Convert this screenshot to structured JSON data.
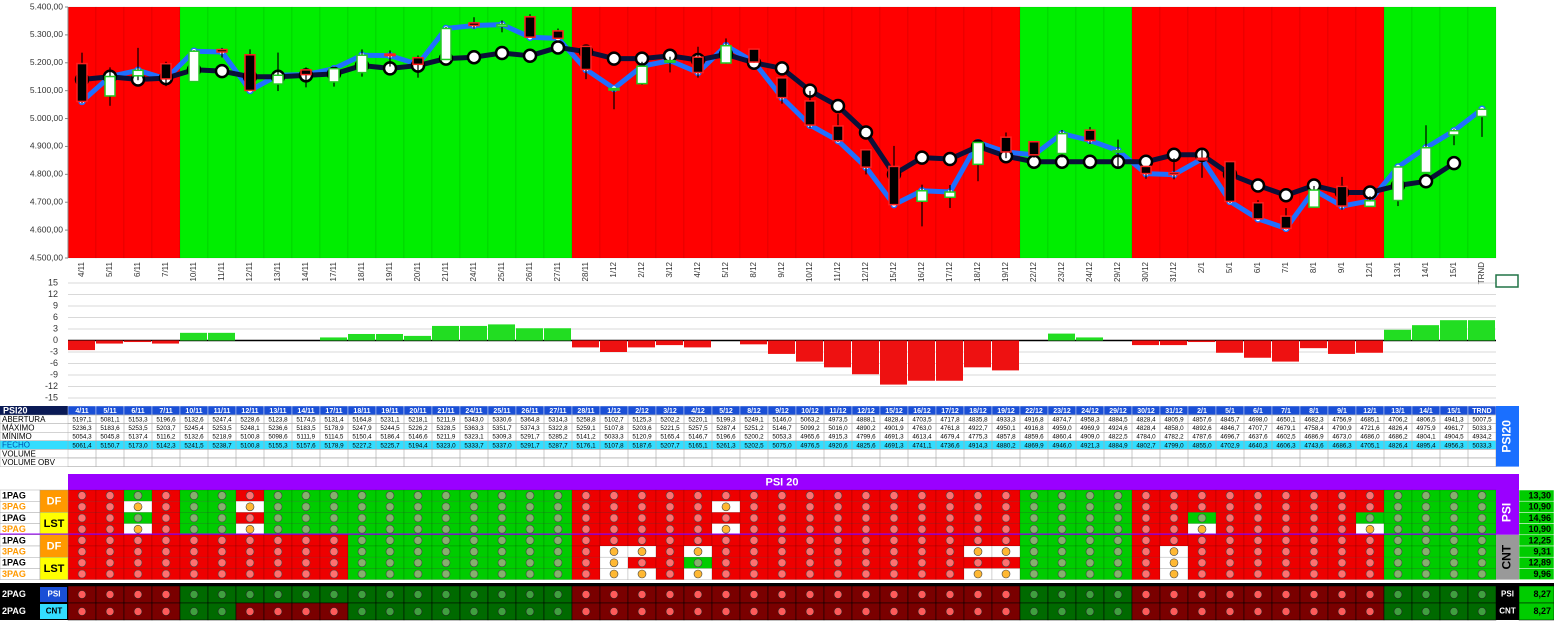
{
  "chart_data": [
    {
      "type": "candlestick",
      "categories": [
        "4/11",
        "5/11",
        "6/11",
        "7/11",
        "10/11",
        "11/11",
        "12/11",
        "13/11",
        "14/11",
        "17/11",
        "18/11",
        "19/11",
        "20/11",
        "21/11",
        "24/11",
        "25/11",
        "26/11",
        "27/11",
        "28/11",
        "1/12",
        "2/12",
        "3/12",
        "4/12",
        "5/12",
        "8/12",
        "9/12",
        "10/12",
        "11/12",
        "12/12",
        "15/12",
        "16/12",
        "17/12",
        "18/12",
        "19/12",
        "22/12",
        "23/12",
        "24/12",
        "29/12",
        "30/12",
        "31/12",
        "2/1",
        "5/1",
        "6/1",
        "7/1",
        "8/1",
        "9/1",
        "12/1",
        "13/1",
        "14/1",
        "15/1",
        "TRND"
      ],
      "open": [
        5197.1,
        5081.1,
        5153.3,
        5196.6,
        5132.6,
        5247.4,
        5228.6,
        5123.8,
        5174.5,
        5131.4,
        5164.8,
        5231.1,
        5218.1,
        5211.9,
        5343.0,
        5330.6,
        5364.8,
        5314.3,
        5258.8,
        5102.7,
        5125.3,
        5202.2,
        5220.1,
        5199.3,
        5249.1,
        5146.0,
        5063.2,
        4973.5,
        4888.1,
        4828.4,
        4703.5,
        4717.8,
        4835.8,
        4933.3,
        4916.8,
        4874.7,
        4958.3,
        4884.5,
        4828.4,
        4805.9,
        4857.6,
        4845.7,
        4698.0,
        4650.1,
        4682.3,
        4756.9,
        4685.1,
        4706.2,
        4806.5,
        4941.3,
        5007.5
      ],
      "high": [
        5236.3,
        5183.6,
        5253.5,
        5203.7,
        5245.4,
        5253.5,
        5248.1,
        5236.6,
        5183.5,
        5178.9,
        5247.9,
        5244.5,
        5226.2,
        5328.5,
        5363.3,
        5351.7,
        5374.3,
        5322.8,
        5259.1,
        5107.8,
        5203.6,
        5221.5,
        5257.5,
        5287.4,
        5251.2,
        5146.7,
        5099.2,
        5016.0,
        4890.2,
        4901.9,
        4763.0,
        4761.8,
        4922.7,
        4950.1,
        4916.8,
        4959.0,
        4969.9,
        4924.6,
        4828.4,
        4858.0,
        4892.6,
        4846.7,
        4707.7,
        4679.1,
        4758.4,
        4790.9,
        4721.6,
        4826.4,
        4975.9,
        4961.7,
        5033.3
      ],
      "low": [
        5054.3,
        5045.8,
        5137.4,
        5116.2,
        5132.6,
        5218.9,
        5100.8,
        5098.6,
        5111.9,
        5114.5,
        5150.4,
        5186.4,
        5146.6,
        5211.9,
        5323.1,
        5309.3,
        5291.7,
        5285.2,
        5141.2,
        5033.3,
        5120.9,
        5165.4,
        5146.7,
        5196.6,
        5200.2,
        5053.3,
        4965.6,
        4915.3,
        4799.6,
        4691.3,
        4613.4,
        4679.4,
        4775.3,
        4857.8,
        4859.6,
        4860.4,
        4909.0,
        4822.5,
        4784.0,
        4782.2,
        4787.6,
        4696.7,
        4637.6,
        4602.5,
        4686.9,
        4673.0,
        4686.0,
        4686.2,
        4804.1,
        4904.5,
        4934.2
      ],
      "close": [
        5061.4,
        5150.7,
        5173.0,
        5142.3,
        5241.5,
        5238.7,
        5100.8,
        5155.3,
        5157.6,
        5178.9,
        5227.2,
        5225.7,
        5194.4,
        5323.0,
        5333.7,
        5337.0,
        5291.7,
        5287.7,
        5176.1,
        5107.8,
        5187.6,
        5207.7,
        5165.1,
        5261.3,
        5202.5,
        5075.0,
        4976.5,
        4920.6,
        4825.6,
        4691.3,
        4741.1,
        4736.6,
        4914.3,
        4880.2,
        4869.9,
        4946.0,
        4921.3,
        4884.9,
        4802.7,
        4799.0,
        4855.0,
        4702.9,
        4640.3,
        4606.3,
        4743.6,
        4686.3,
        4705.1,
        4826.4,
        4895.4,
        4956.3,
        5033.3
      ],
      "trend": {
        "color": "#0b1038",
        "values": [
          5140,
          5150,
          5140,
          5145,
          5175,
          5170,
          5150,
          5150,
          5155,
          5160,
          5190,
          5180,
          5190,
          5215,
          5220,
          5235,
          5225,
          5255,
          5240,
          5215,
          5215,
          5225,
          5210,
          5230,
          5200,
          5180,
          5100,
          5045,
          4950,
          4800,
          4860,
          4855,
          4900,
          4865,
          4845,
          4845,
          4845,
          4845,
          4845,
          4870,
          4870,
          4800,
          4760,
          4725,
          4760,
          4735,
          4735,
          4760,
          4775,
          4840,
          null
        ]
      },
      "close_line_color": "#1f6fff",
      "up_color": "#ffffff",
      "up_border": "#22cc22",
      "down_color": "#000000",
      "down_border": "#ff2020",
      "band_colors": [
        "#ff0000",
        "#ff0000",
        "#ff0000",
        "#ff0000",
        "#00ee00",
        "#00ee00",
        "#00ee00",
        "#00ee00",
        "#00ee00",
        "#00ee00",
        "#00ee00",
        "#00ee00",
        "#00ee00",
        "#00ee00",
        "#00ee00",
        "#00ee00",
        "#00ee00",
        "#00ee00",
        "#ff0000",
        "#ff0000",
        "#ff0000",
        "#ff0000",
        "#ff0000",
        "#ff0000",
        "#ff0000",
        "#ff0000",
        "#ff0000",
        "#ff0000",
        "#ff0000",
        "#ff0000",
        "#ff0000",
        "#ff0000",
        "#ff0000",
        "#ff0000",
        "#00ee00",
        "#00ee00",
        "#00ee00",
        "#00ee00",
        "#ff0000",
        "#ff0000",
        "#ff0000",
        "#ff0000",
        "#ff0000",
        "#ff0000",
        "#ff0000",
        "#ff0000",
        "#ff0000",
        "#00ee00",
        "#00ee00",
        "#00ee00",
        "#00ee00"
      ],
      "ylim": [
        4500,
        5400
      ],
      "yticks": [
        {
          "value": 4500,
          "label": "4.500,00"
        },
        {
          "value": 4600,
          "label": "4.600,00"
        },
        {
          "value": 4700,
          "label": "4.700,00"
        },
        {
          "value": 4800,
          "label": "4.800,00"
        },
        {
          "value": 4900,
          "label": "4.900,00"
        },
        {
          "value": 5000,
          "label": "5.000,00"
        },
        {
          "value": 5100,
          "label": "5.100,00"
        },
        {
          "value": 5200,
          "label": "5.200,00"
        },
        {
          "value": 5300,
          "label": "5.300,00"
        },
        {
          "value": 5400,
          "label": "5.400,00"
        }
      ]
    },
    {
      "type": "bar",
      "values": [
        -2.5,
        -0.8,
        -0.4,
        -0.8,
        2,
        2,
        0,
        0,
        0,
        0.8,
        1.7,
        1.7,
        1.2,
        3.8,
        3.8,
        4.2,
        3.2,
        3.2,
        -1.8,
        -3,
        -1.8,
        -1.2,
        -1.8,
        0,
        -1,
        -3.5,
        -5.5,
        -7,
        -8.8,
        -11.5,
        -10.5,
        -10.5,
        -7,
        -7.8,
        0,
        1.8,
        0.8,
        0,
        -1.2,
        -1.2,
        -0.4,
        -3.2,
        -4.5,
        -5.5,
        -2,
        -3.5,
        -3.2,
        2.8,
        4,
        5.3,
        5.3
      ],
      "positive_color": "#22dd22",
      "negative_color": "#ee1111",
      "ylim": [
        -15,
        15
      ],
      "yticks": [
        -15,
        -12,
        -9,
        -6,
        -3,
        0,
        3,
        6,
        9,
        12,
        15
      ],
      "grid": true
    }
  ],
  "table": {
    "title": "PSI20",
    "side_label": "PSI20",
    "rows": [
      {
        "label": "ABERTURA",
        "cells": [
          "5197,1",
          "5081,1",
          "5153,3",
          "5196,6",
          "5132,6",
          "5247,4",
          "5228,6",
          "5123,8",
          "5174,5",
          "5131,4",
          "5164,8",
          "5231,1",
          "5218,1",
          "5211,9",
          "5343,0",
          "5330,6",
          "5364,8",
          "5314,3",
          "5258,8",
          "5102,7",
          "5125,3",
          "5202,2",
          "5220,1",
          "5199,3",
          "5249,1",
          "5146,0",
          "5063,2",
          "4973,5",
          "4888,1",
          "4828,4",
          "4703,5",
          "4717,8",
          "4835,8",
          "4933,3",
          "4916,8",
          "4874,7",
          "4958,3",
          "4884,5",
          "4828,4",
          "4805,9",
          "4857,6",
          "4845,7",
          "4698,0",
          "4650,1",
          "4682,3",
          "4756,9",
          "4685,1",
          "4706,2",
          "4806,5",
          "4941,3",
          "5007,5"
        ]
      },
      {
        "label": "MÁXIMO",
        "cells": [
          "5236,3",
          "5183,6",
          "5253,5",
          "5203,7",
          "5245,4",
          "5253,5",
          "5248,1",
          "5236,6",
          "5183,5",
          "5178,9",
          "5247,9",
          "5244,5",
          "5226,2",
          "5328,5",
          "5363,3",
          "5351,7",
          "5374,3",
          "5322,8",
          "5259,1",
          "5107,8",
          "5203,6",
          "5221,5",
          "5257,5",
          "5287,4",
          "5251,2",
          "5146,7",
          "5099,2",
          "5016,0",
          "4890,2",
          "4901,9",
          "4763,0",
          "4761,8",
          "4922,7",
          "4950,1",
          "4916,8",
          "4959,0",
          "4969,9",
          "4924,6",
          "4828,4",
          "4858,0",
          "4892,6",
          "4846,7",
          "4707,7",
          "4679,1",
          "4758,4",
          "4790,9",
          "4721,6",
          "4826,4",
          "4975,9",
          "4961,7",
          "5033,3"
        ]
      },
      {
        "label": "MÍNIMO",
        "cells": [
          "5054,3",
          "5045,8",
          "5137,4",
          "5116,2",
          "5132,6",
          "5218,9",
          "5100,8",
          "5098,6",
          "5111,9",
          "5114,5",
          "5150,4",
          "5186,4",
          "5146,6",
          "5211,9",
          "5323,1",
          "5309,3",
          "5291,7",
          "5285,2",
          "5141,2",
          "5033,3",
          "5120,9",
          "5165,4",
          "5146,7",
          "5196,6",
          "5200,2",
          "5053,3",
          "4965,6",
          "4915,3",
          "4799,6",
          "4691,3",
          "4613,4",
          "4679,4",
          "4775,3",
          "4857,8",
          "4859,6",
          "4860,4",
          "4909,0",
          "4822,5",
          "4784,0",
          "4782,2",
          "4787,6",
          "4696,7",
          "4637,6",
          "4602,5",
          "4686,9",
          "4673,0",
          "4686,0",
          "4686,2",
          "4804,1",
          "4904,5",
          "4934,2"
        ]
      },
      {
        "label": "FECHO",
        "cells": [
          "5061,4",
          "5150,7",
          "5173,0",
          "5142,3",
          "5241,5",
          "5238,7",
          "5100,8",
          "5155,3",
          "5157,6",
          "5178,9",
          "5227,2",
          "5225,7",
          "5194,4",
          "5323,0",
          "5333,7",
          "5337,0",
          "5291,7",
          "5287,7",
          "5176,1",
          "5107,8",
          "5187,6",
          "5207,7",
          "5165,1",
          "5261,3",
          "5202,5",
          "5075,0",
          "4976,5",
          "4920,6",
          "4825,6",
          "4691,3",
          "4741,1",
          "4736,6",
          "4914,3",
          "4880,2",
          "4869,9",
          "4946,0",
          "4921,3",
          "4884,9",
          "4802,7",
          "4799,0",
          "4855,0",
          "4702,9",
          "4640,3",
          "4606,3",
          "4743,6",
          "4686,3",
          "4705,1",
          "4826,4",
          "4895,4",
          "4956,3",
          "5033,3"
        ]
      },
      {
        "label": "VOLUME",
        "cells": []
      },
      {
        "label": "VOLUME OBV",
        "cells": []
      }
    ]
  },
  "signals": {
    "banner": "PSI 20",
    "palette": {
      "g": {
        "fill": "#00cc00",
        "dot": "#86b06e"
      },
      "r": {
        "fill": "#ee0000",
        "dot": "#ff7070"
      },
      "w": {
        "fill": "#ffffff",
        "dot": "#ffb833"
      }
    },
    "dark_palette": {
      "g": {
        "fill": "#006a00",
        "dot": "#3fa03f"
      },
      "r": {
        "fill": "#7a0000",
        "dot": "#ff5a5a"
      }
    },
    "groups": [
      {
        "label": "PSI",
        "pairs": [
          {
            "tag": "DF",
            "rows": [
              {
                "pag": "1PAG",
                "states": "rrgrggrgggggggggggrrrrrrrrrrrrrrrrggggrrrrrrrrrgggg",
                "score": "13,30"
              },
              {
                "pag": "3PAG",
                "states": "rrwrggwgggggggggggrrrrrwrrrrrrrrrrggggrrrrrrrrrgggg",
                "score": "10,90"
              }
            ]
          },
          {
            "tag": "LST",
            "rows": [
              {
                "pag": "1PAG",
                "states": "rrgrggrgggggggggggrrrrrrrrrrrrrrrrggggrrgrrrrrggggg",
                "score": "14,96"
              },
              {
                "pag": "3PAG",
                "states": "rrwrggwgggggggggggrrrrrwrrrrrrrrrrggggrrwrrrrrwgggg",
                "score": "10,90"
              }
            ]
          }
        ]
      },
      {
        "label": "CNT",
        "pairs": [
          {
            "tag": "DF",
            "rows": [
              {
                "pag": "1PAG",
                "states": "rrrrrrrrrrggggggggrrrrrrrrrrrrrrrrggggrrrrrrrrrgggg",
                "score": "12,25"
              },
              {
                "pag": "3PAG",
                "states": "rrrrrrrrrrggggggggrwwrwrrrrrrrrrwwggggrwrrrrrrrgggg",
                "score": "9,31"
              }
            ]
          },
          {
            "tag": "LST",
            "rows": [
              {
                "pag": "1PAG",
                "states": "rrrrrrrrrrggggggggrwrrgrrrrrrrrrrrggggrwrrrrrrrgggg",
                "score": "12,89"
              },
              {
                "pag": "3PAG",
                "states": "rrrrrrrrrrggggggggrwwrwrrrrrrrrrwwggggrwrrrrrrrgggg",
                "score": "9,96"
              }
            ]
          }
        ]
      }
    ],
    "summary": [
      {
        "pag": "2PAG",
        "tag": "PSI",
        "side": "PSI",
        "states": "rrrrggggggggggggggrrrrrrrrrrrrrrrrggggrrrrrrrrrgggg",
        "score": "8,27"
      },
      {
        "pag": "2PAG",
        "tag": "CNT",
        "side": "CNT",
        "states": "rrrrggrrrrggggggggrrrrrrrrrrrrrrrrggggrrrrrrrrrgggg",
        "score": "8,27"
      }
    ]
  }
}
